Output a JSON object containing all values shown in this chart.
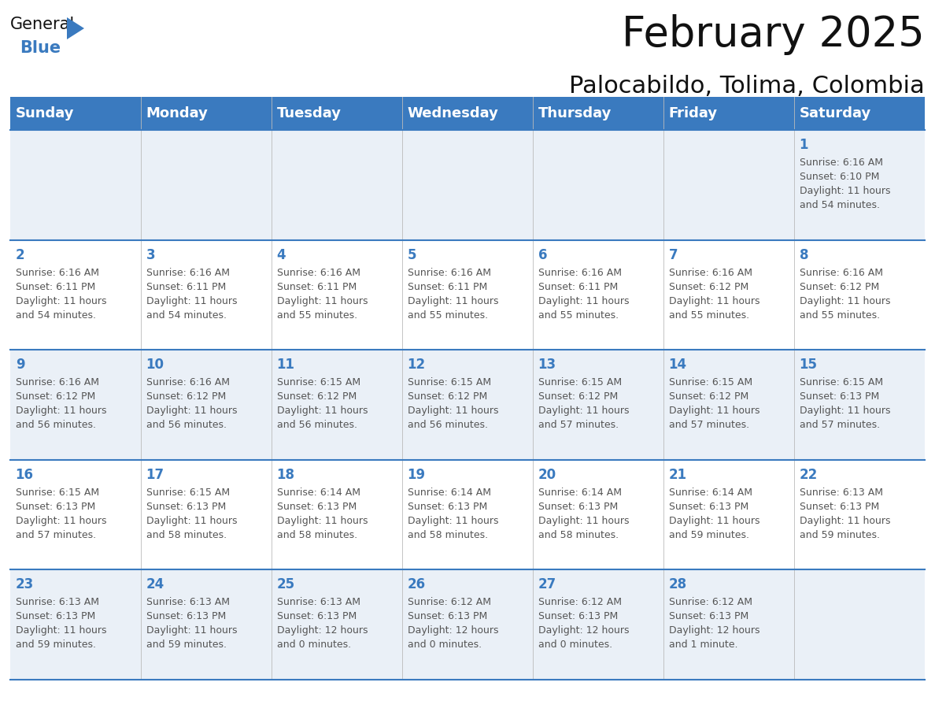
{
  "title": "February 2025",
  "subtitle": "Palocabildo, Tolima, Colombia",
  "days_of_week": [
    "Sunday",
    "Monday",
    "Tuesday",
    "Wednesday",
    "Thursday",
    "Friday",
    "Saturday"
  ],
  "header_bg": "#3a7abf",
  "header_text": "#ffffff",
  "row0_bg": "#eaf0f7",
  "row1_bg": "#ffffff",
  "row2_bg": "#eaf0f7",
  "row3_bg": "#ffffff",
  "row4_bg": "#eaf0f7",
  "grid_line_color": "#3a7abf",
  "day_number_color": "#3a7abf",
  "text_color": "#555555",
  "calendar_data": [
    [
      null,
      null,
      null,
      null,
      null,
      null,
      {
        "day": "1",
        "sunrise": "6:16 AM",
        "sunset": "6:10 PM",
        "daylight": "11 hours",
        "daylight2": "and 54 minutes."
      }
    ],
    [
      {
        "day": "2",
        "sunrise": "6:16 AM",
        "sunset": "6:11 PM",
        "daylight": "11 hours",
        "daylight2": "and 54 minutes."
      },
      {
        "day": "3",
        "sunrise": "6:16 AM",
        "sunset": "6:11 PM",
        "daylight": "11 hours",
        "daylight2": "and 54 minutes."
      },
      {
        "day": "4",
        "sunrise": "6:16 AM",
        "sunset": "6:11 PM",
        "daylight": "11 hours",
        "daylight2": "and 55 minutes."
      },
      {
        "day": "5",
        "sunrise": "6:16 AM",
        "sunset": "6:11 PM",
        "daylight": "11 hours",
        "daylight2": "and 55 minutes."
      },
      {
        "day": "6",
        "sunrise": "6:16 AM",
        "sunset": "6:11 PM",
        "daylight": "11 hours",
        "daylight2": "and 55 minutes."
      },
      {
        "day": "7",
        "sunrise": "6:16 AM",
        "sunset": "6:12 PM",
        "daylight": "11 hours",
        "daylight2": "and 55 minutes."
      },
      {
        "day": "8",
        "sunrise": "6:16 AM",
        "sunset": "6:12 PM",
        "daylight": "11 hours",
        "daylight2": "and 55 minutes."
      }
    ],
    [
      {
        "day": "9",
        "sunrise": "6:16 AM",
        "sunset": "6:12 PM",
        "daylight": "11 hours",
        "daylight2": "and 56 minutes."
      },
      {
        "day": "10",
        "sunrise": "6:16 AM",
        "sunset": "6:12 PM",
        "daylight": "11 hours",
        "daylight2": "and 56 minutes."
      },
      {
        "day": "11",
        "sunrise": "6:15 AM",
        "sunset": "6:12 PM",
        "daylight": "11 hours",
        "daylight2": "and 56 minutes."
      },
      {
        "day": "12",
        "sunrise": "6:15 AM",
        "sunset": "6:12 PM",
        "daylight": "11 hours",
        "daylight2": "and 56 minutes."
      },
      {
        "day": "13",
        "sunrise": "6:15 AM",
        "sunset": "6:12 PM",
        "daylight": "11 hours",
        "daylight2": "and 57 minutes."
      },
      {
        "day": "14",
        "sunrise": "6:15 AM",
        "sunset": "6:12 PM",
        "daylight": "11 hours",
        "daylight2": "and 57 minutes."
      },
      {
        "day": "15",
        "sunrise": "6:15 AM",
        "sunset": "6:13 PM",
        "daylight": "11 hours",
        "daylight2": "and 57 minutes."
      }
    ],
    [
      {
        "day": "16",
        "sunrise": "6:15 AM",
        "sunset": "6:13 PM",
        "daylight": "11 hours",
        "daylight2": "and 57 minutes."
      },
      {
        "day": "17",
        "sunrise": "6:15 AM",
        "sunset": "6:13 PM",
        "daylight": "11 hours",
        "daylight2": "and 58 minutes."
      },
      {
        "day": "18",
        "sunrise": "6:14 AM",
        "sunset": "6:13 PM",
        "daylight": "11 hours",
        "daylight2": "and 58 minutes."
      },
      {
        "day": "19",
        "sunrise": "6:14 AM",
        "sunset": "6:13 PM",
        "daylight": "11 hours",
        "daylight2": "and 58 minutes."
      },
      {
        "day": "20",
        "sunrise": "6:14 AM",
        "sunset": "6:13 PM",
        "daylight": "11 hours",
        "daylight2": "and 58 minutes."
      },
      {
        "day": "21",
        "sunrise": "6:14 AM",
        "sunset": "6:13 PM",
        "daylight": "11 hours",
        "daylight2": "and 59 minutes."
      },
      {
        "day": "22",
        "sunrise": "6:13 AM",
        "sunset": "6:13 PM",
        "daylight": "11 hours",
        "daylight2": "and 59 minutes."
      }
    ],
    [
      {
        "day": "23",
        "sunrise": "6:13 AM",
        "sunset": "6:13 PM",
        "daylight": "11 hours",
        "daylight2": "and 59 minutes."
      },
      {
        "day": "24",
        "sunrise": "6:13 AM",
        "sunset": "6:13 PM",
        "daylight": "11 hours",
        "daylight2": "and 59 minutes."
      },
      {
        "day": "25",
        "sunrise": "6:13 AM",
        "sunset": "6:13 PM",
        "daylight": "12 hours",
        "daylight2": "and 0 minutes."
      },
      {
        "day": "26",
        "sunrise": "6:12 AM",
        "sunset": "6:13 PM",
        "daylight": "12 hours",
        "daylight2": "and 0 minutes."
      },
      {
        "day": "27",
        "sunrise": "6:12 AM",
        "sunset": "6:13 PM",
        "daylight": "12 hours",
        "daylight2": "and 0 minutes."
      },
      {
        "day": "28",
        "sunrise": "6:12 AM",
        "sunset": "6:13 PM",
        "daylight": "12 hours",
        "daylight2": "and 1 minute."
      },
      null
    ]
  ],
  "title_fontsize": 38,
  "subtitle_fontsize": 22,
  "header_fontsize": 13,
  "day_num_fontsize": 12,
  "cell_text_fontsize": 9
}
